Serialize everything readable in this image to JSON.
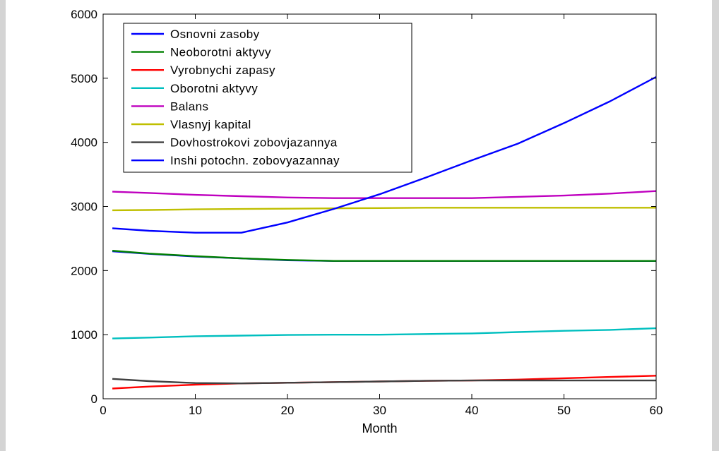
{
  "chart_data": {
    "type": "line",
    "title": "",
    "xlabel": "Month",
    "ylabel": "",
    "xlim": [
      0,
      60
    ],
    "ylim": [
      0,
      6000
    ],
    "xticks": [
      0,
      10,
      20,
      30,
      40,
      50,
      60
    ],
    "yticks": [
      0,
      1000,
      2000,
      3000,
      4000,
      5000,
      6000
    ],
    "grid": false,
    "legend_position": "top-left",
    "x": [
      1,
      5,
      10,
      15,
      20,
      25,
      30,
      35,
      40,
      45,
      50,
      55,
      60
    ],
    "series": [
      {
        "name": "Osnovni zasoby",
        "color": "#0000ff",
        "values": [
          2300,
          2260,
          2220,
          2190,
          2160,
          2150,
          2150,
          2150,
          2150,
          2150,
          2150,
          2150,
          2150
        ]
      },
      {
        "name": "Neoborotni aktyvy",
        "color": "#008000",
        "values": [
          2310,
          2265,
          2225,
          2190,
          2165,
          2150,
          2150,
          2150,
          2150,
          2150,
          2150,
          2150,
          2150
        ]
      },
      {
        "name": "Vyrobnychi zapasy",
        "color": "#ff0000",
        "values": [
          160,
          190,
          220,
          240,
          250,
          260,
          270,
          280,
          285,
          300,
          320,
          340,
          360
        ]
      },
      {
        "name": "Oborotni aktyvy",
        "color": "#00bfbf",
        "values": [
          940,
          955,
          975,
          985,
          995,
          1000,
          1000,
          1010,
          1020,
          1040,
          1060,
          1075,
          1100
        ]
      },
      {
        "name": "Balans",
        "color": "#bf00bf",
        "values": [
          3230,
          3210,
          3180,
          3160,
          3140,
          3130,
          3130,
          3130,
          3130,
          3150,
          3170,
          3200,
          3240
        ]
      },
      {
        "name": "Vlasnyj kapital",
        "color": "#bfbf00",
        "values": [
          2940,
          2945,
          2955,
          2960,
          2965,
          2970,
          2975,
          2980,
          2980,
          2980,
          2980,
          2980,
          2980
        ]
      },
      {
        "name": "Dovhostrokovi zobovjazannya",
        "color": "#404040",
        "values": [
          310,
          275,
          245,
          240,
          250,
          260,
          270,
          280,
          285,
          285,
          285,
          285,
          285
        ]
      },
      {
        "name": "Inshi potochn. zobovyazannay",
        "color": "#0000ff",
        "values": [
          2660,
          2620,
          2590,
          2590,
          2750,
          2960,
          3190,
          3450,
          3720,
          3980,
          4300,
          4640,
          5020
        ]
      }
    ]
  }
}
